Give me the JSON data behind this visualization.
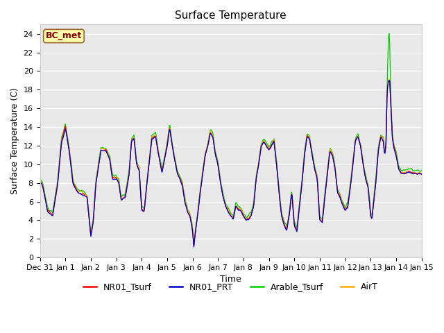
{
  "title": "Surface Temperature",
  "xlabel": "Time",
  "ylabel": "Surface Temperature (C)",
  "annotation": "BC_met",
  "ylim": [
    0,
    25
  ],
  "yticks": [
    0,
    2,
    4,
    6,
    8,
    10,
    12,
    14,
    16,
    18,
    20,
    22,
    24
  ],
  "xtick_labels": [
    "Dec 31",
    "Jan 1",
    "Jan 2",
    "Jan 3",
    "Jan 4",
    "Jan 5",
    "Jan 6",
    "Jan 7",
    "Jan 8",
    "Jan 9",
    "Jan 10",
    "Jan 11",
    "Jan 12",
    "Jan 13",
    "Jan 14",
    "Jan 15"
  ],
  "legend_entries": [
    "NR01_Tsurf",
    "NR01_PRT",
    "Arable_Tsurf",
    "AirT"
  ],
  "line_colors": [
    "#ff0000",
    "#0000cc",
    "#00cc00",
    "#ffaa00"
  ],
  "fig_bg": "#ffffff",
  "plot_bg": "#e8e8e8",
  "grid_color": "#ffffff",
  "annotation_bg": "#ffffaa",
  "annotation_border": "#996633",
  "annotation_text_color": "#880000",
  "title_fontsize": 11,
  "axis_fontsize": 9,
  "tick_fontsize": 8,
  "legend_fontsize": 9
}
